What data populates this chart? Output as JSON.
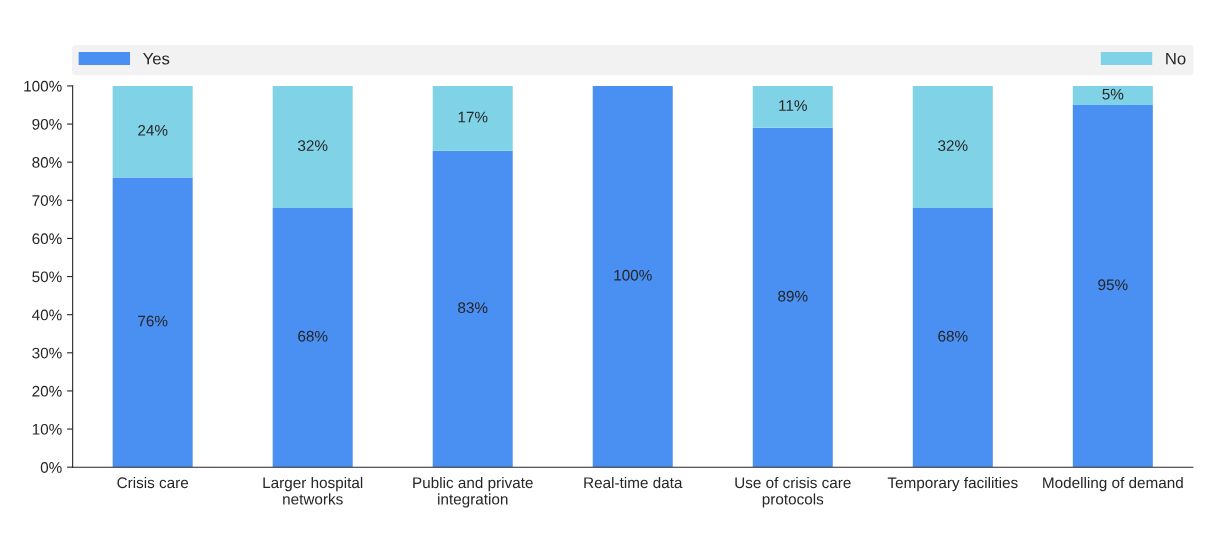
{
  "chart_data": {
    "type": "bar",
    "stacked": true,
    "categories": [
      "Crisis care",
      "Larger hospital\nnetworks",
      "Public and private\nintegration",
      "Real-time data",
      "Use of crisis care\nprotocols",
      "Temporary facilities",
      "Modelling of demand"
    ],
    "series": [
      {
        "name": "Yes",
        "color": "#4a8ff2",
        "values": [
          76,
          68,
          83,
          100,
          89,
          68,
          95
        ],
        "value_labels": [
          "76%",
          "68%",
          "83%",
          "100%",
          "89%",
          "68%",
          "95%"
        ]
      },
      {
        "name": "No",
        "color": "#80d2e6",
        "values": [
          24,
          32,
          17,
          0,
          11,
          32,
          5
        ],
        "value_labels": [
          "24%",
          "32%",
          "17%",
          null,
          "11%",
          "32%",
          "5%"
        ]
      }
    ],
    "ylim": [
      0,
      100
    ],
    "yticks": [
      {
        "value": 0,
        "label": "0%"
      },
      {
        "value": 10,
        "label": "10%"
      },
      {
        "value": 20,
        "label": "20%"
      },
      {
        "value": 30,
        "label": "30%"
      },
      {
        "value": 40,
        "label": "40%"
      },
      {
        "value": 50,
        "label": "50%"
      },
      {
        "value": 60,
        "label": "60%"
      },
      {
        "value": 70,
        "label": "70%"
      },
      {
        "value": 80,
        "label": "80%"
      },
      {
        "value": 90,
        "label": "90%"
      },
      {
        "value": 100,
        "label": "100%"
      }
    ],
    "grid": false,
    "legend": "top"
  }
}
